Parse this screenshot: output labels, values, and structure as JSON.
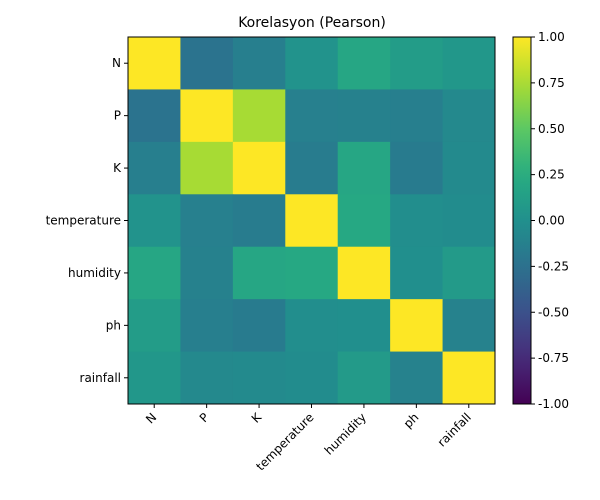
{
  "chart_data": {
    "type": "heatmap",
    "title": "Korelasyon (Pearson)",
    "xlabel": "",
    "ylabel": "",
    "x_categories": [
      "N",
      "P",
      "K",
      "temperature",
      "humidity",
      "ph",
      "rainfall"
    ],
    "y_categories": [
      "N",
      "P",
      "K",
      "temperature",
      "humidity",
      "ph",
      "rainfall"
    ],
    "values": [
      [
        1.0,
        -0.23,
        -0.14,
        0.03,
        0.19,
        0.1,
        0.06
      ],
      [
        -0.23,
        1.0,
        0.74,
        -0.13,
        -0.12,
        -0.14,
        -0.06
      ],
      [
        -0.14,
        0.74,
        1.0,
        -0.16,
        0.19,
        -0.17,
        -0.05
      ],
      [
        0.03,
        -0.13,
        -0.16,
        1.0,
        0.21,
        -0.02,
        -0.03
      ],
      [
        0.19,
        -0.12,
        0.19,
        0.21,
        1.0,
        -0.01,
        0.09
      ],
      [
        0.1,
        -0.14,
        -0.17,
        -0.02,
        -0.01,
        1.0,
        -0.11
      ],
      [
        0.06,
        -0.06,
        -0.05,
        -0.03,
        0.09,
        -0.11,
        1.0
      ]
    ],
    "colormap": "viridis",
    "vmin": -1.0,
    "vmax": 1.0,
    "colorbar_ticks": [
      "-1.00",
      "-0.75",
      "-0.50",
      "-0.25",
      "0.00",
      "0.25",
      "0.50",
      "0.75",
      "1.00"
    ],
    "grid": false
  }
}
